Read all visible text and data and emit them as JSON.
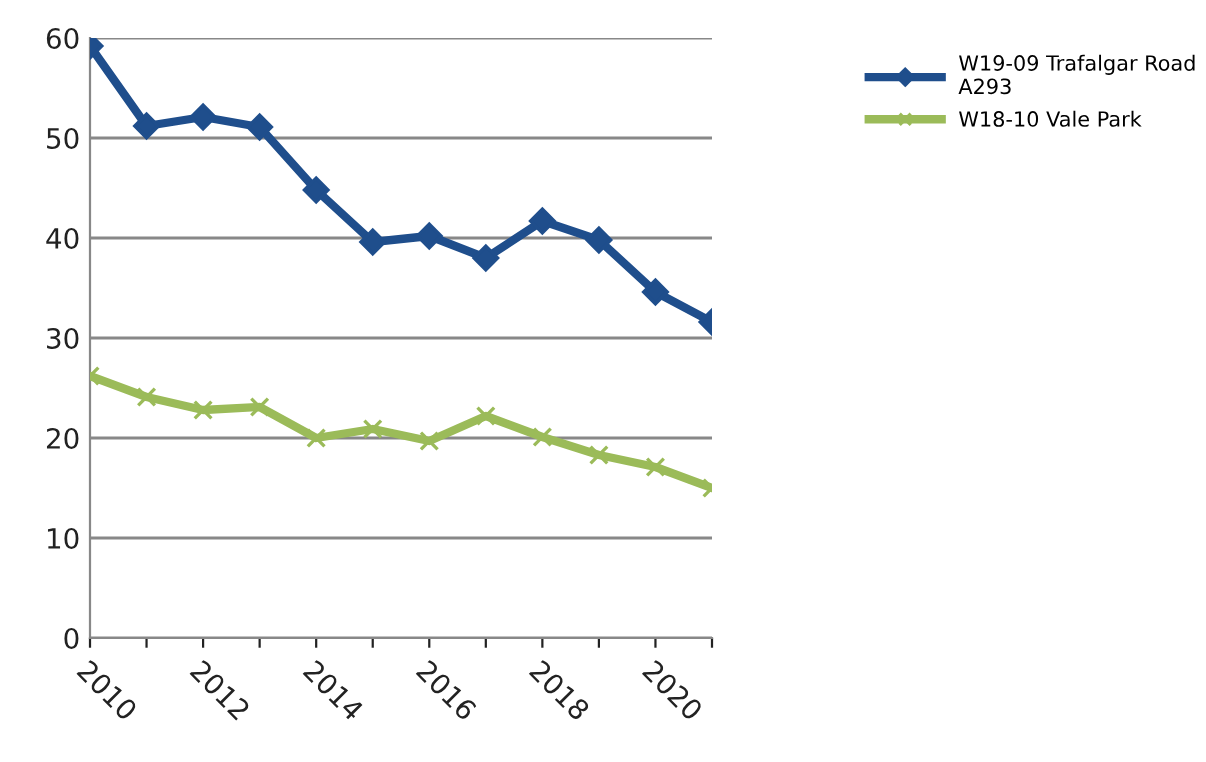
{
  "chart_data": {
    "type": "line",
    "x": [
      2010,
      2011,
      2012,
      2013,
      2014,
      2015,
      2016,
      2017,
      2018,
      2019,
      2020,
      2021
    ],
    "series": [
      {
        "name": "W19-09 Trafalgar Road\nA293",
        "color": "#1f4e8c",
        "marker": "diamond",
        "values": [
          59.2,
          51.2,
          52.1,
          51.1,
          44.8,
          39.6,
          40.2,
          38.0,
          41.7,
          39.8,
          34.6,
          31.6
        ]
      },
      {
        "name": "W18-10 Vale Park",
        "color": "#9bbb59",
        "marker": "cross",
        "values": [
          26.2,
          24.1,
          22.8,
          23.1,
          20.0,
          20.9,
          19.7,
          22.2,
          20.1,
          18.3,
          17.1,
          15.0
        ]
      }
    ],
    "xlim": [
      2010,
      2021
    ],
    "xticks": [
      2010,
      {
        "value": 2011,
        "label": null
      },
      2012,
      {
        "value": 2013,
        "label": null
      },
      2014,
      {
        "value": 2015,
        "label": null
      },
      2016,
      {
        "value": 2017,
        "label": null
      },
      2018,
      {
        "value": 2019,
        "label": null
      },
      2020,
      {
        "value": 2021,
        "label": null
      }
    ],
    "ylim": [
      0,
      60
    ],
    "yticks": [
      0,
      10,
      20,
      30,
      40,
      50,
      60
    ],
    "grid": "y",
    "legend": "top right",
    "line_style": "solid"
  }
}
